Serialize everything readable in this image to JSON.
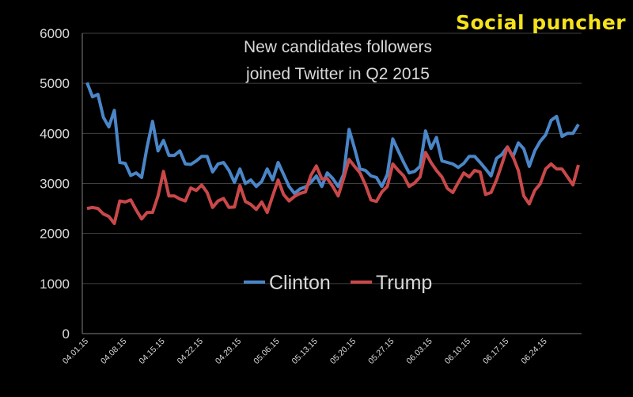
{
  "logo": {
    "text": "Social puncher",
    "color": "#f5e21b"
  },
  "chart_data": {
    "type": "line",
    "title": "New candidates followers joined Twitter in Q2 2015",
    "title_lines": [
      "New candidates followers",
      "joined Twitter in Q2 2015"
    ],
    "xlabel": "",
    "ylabel": "",
    "ylim": [
      0,
      6000
    ],
    "yticks": [
      0,
      1000,
      2000,
      3000,
      4000,
      5000,
      6000
    ],
    "xtick_labels": [
      "04.01.15",
      "04.08.15",
      "04.15.15",
      "04.22.15",
      "04.29.15",
      "05.06.15",
      "05.13.15",
      "05.20.15",
      "05.27.15",
      "06.03.15",
      "06.10.15",
      "06.17.15",
      "06.24.15"
    ],
    "grid": true,
    "legend": "center",
    "x": [
      "04.01.15",
      "04.02.15",
      "04.03.15",
      "04.04.15",
      "04.05.15",
      "04.06.15",
      "04.07.15",
      "04.08.15",
      "04.09.15",
      "04.10.15",
      "04.11.15",
      "04.12.15",
      "04.13.15",
      "04.14.15",
      "04.15.15",
      "04.16.15",
      "04.17.15",
      "04.18.15",
      "04.19.15",
      "04.20.15",
      "04.21.15",
      "04.22.15",
      "04.23.15",
      "04.24.15",
      "04.25.15",
      "04.26.15",
      "04.27.15",
      "04.28.15",
      "04.29.15",
      "04.30.15",
      "05.01.15",
      "05.02.15",
      "05.03.15",
      "05.04.15",
      "05.05.15",
      "05.06.15",
      "05.07.15",
      "05.08.15",
      "05.09.15",
      "05.10.15",
      "05.11.15",
      "05.12.15",
      "05.13.15",
      "05.14.15",
      "05.15.15",
      "05.16.15",
      "05.17.15",
      "05.18.15",
      "05.19.15",
      "05.20.15",
      "05.21.15",
      "05.22.15",
      "05.23.15",
      "05.24.15",
      "05.25.15",
      "05.26.15",
      "05.27.15",
      "05.28.15",
      "05.29.15",
      "05.30.15",
      "05.31.15",
      "06.01.15",
      "06.02.15",
      "06.03.15",
      "06.04.15",
      "06.05.15",
      "06.06.15",
      "06.07.15",
      "06.08.15",
      "06.09.15",
      "06.10.15",
      "06.11.15",
      "06.12.15",
      "06.13.15",
      "06.14.15",
      "06.15.15",
      "06.16.15",
      "06.17.15",
      "06.18.15",
      "06.19.15",
      "06.20.15",
      "06.21.15",
      "06.22.15",
      "06.23.15",
      "06.24.15",
      "06.25.15",
      "06.26.15",
      "06.27.15",
      "06.28.15",
      "06.29.15",
      "06.30.15"
    ],
    "series": [
      {
        "name": "Clinton",
        "color": "#4a86c8",
        "values": [
          5015,
          4730,
          4780,
          4320,
          4130,
          4460,
          3420,
          3400,
          3160,
          3210,
          3120,
          3730,
          4240,
          3650,
          3860,
          3560,
          3560,
          3650,
          3390,
          3380,
          3450,
          3540,
          3540,
          3230,
          3390,
          3420,
          3260,
          3020,
          3290,
          3000,
          3070,
          2940,
          3040,
          3290,
          3070,
          3420,
          3180,
          2940,
          2800,
          2890,
          2930,
          3020,
          3150,
          2940,
          3210,
          3100,
          2940,
          3180,
          4080,
          3700,
          3290,
          3260,
          3150,
          3120,
          2940,
          3180,
          3890,
          3650,
          3420,
          3210,
          3240,
          3340,
          4050,
          3700,
          3920,
          3450,
          3420,
          3390,
          3320,
          3400,
          3540,
          3540,
          3420,
          3290,
          3150,
          3500,
          3580,
          3730,
          3530,
          3810,
          3690,
          3340,
          3650,
          3840,
          3970,
          4260,
          4340,
          3940,
          4000,
          4000,
          4180
        ]
      },
      {
        "name": "Trump",
        "color": "#c9484a",
        "values": [
          2500,
          2520,
          2500,
          2390,
          2340,
          2200,
          2650,
          2630,
          2670,
          2470,
          2290,
          2420,
          2420,
          2750,
          3240,
          2750,
          2750,
          2690,
          2650,
          2910,
          2860,
          2970,
          2820,
          2520,
          2650,
          2700,
          2520,
          2530,
          2960,
          2640,
          2580,
          2480,
          2630,
          2420,
          2750,
          3070,
          2780,
          2650,
          2740,
          2800,
          2830,
          3160,
          3350,
          3090,
          3100,
          2940,
          2750,
          3100,
          3480,
          3340,
          3210,
          2970,
          2670,
          2640,
          2830,
          2940,
          3390,
          3260,
          3150,
          2940,
          3010,
          3130,
          3620,
          3420,
          3260,
          3130,
          2900,
          2820,
          3020,
          3210,
          3130,
          3260,
          3230,
          2780,
          2820,
          3070,
          3390,
          3730,
          3540,
          3260,
          2750,
          2590,
          2860,
          2990,
          3290,
          3390,
          3290,
          3290,
          3130,
          2970,
          3370
        ]
      }
    ]
  }
}
